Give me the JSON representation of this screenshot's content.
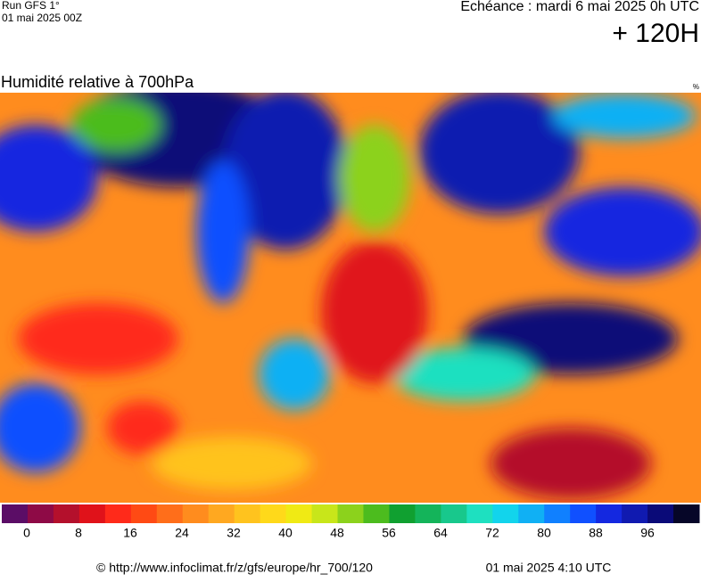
{
  "header": {
    "run": "Run GFS 1°",
    "run_date": "01 mai 2025 00Z",
    "forecast": "Echéance : mardi 6 mai 2025 0h UTC",
    "lead": "+ 120H"
  },
  "map": {
    "title": "Humidité relative à 700hPa",
    "unit": "%"
  },
  "colorbar": {
    "colors": [
      "#5b0d66",
      "#8e0a46",
      "#b4102c",
      "#e0121a",
      "#ff2a1a",
      "#ff4a14",
      "#ff6e1a",
      "#ff8c1e",
      "#ffa820",
      "#ffc31e",
      "#ffd91a",
      "#f0ea14",
      "#c8e61a",
      "#8cd21c",
      "#4cbc1e",
      "#10a030",
      "#14b45a",
      "#18c88c",
      "#1ee0c0",
      "#12d4ec",
      "#10b0f4",
      "#1080ff",
      "#1050ff",
      "#1428e0",
      "#101ab0",
      "#0a0a78",
      "#060628"
    ],
    "ticks": [
      0,
      8,
      16,
      24,
      32,
      40,
      48,
      56,
      64,
      72,
      80,
      88,
      96
    ]
  },
  "footer": {
    "url": "© http://www.infoclimat.fr/z/gfs/europe/hr_700/120",
    "generated": "01 mai 2025  4:10 UTC"
  }
}
